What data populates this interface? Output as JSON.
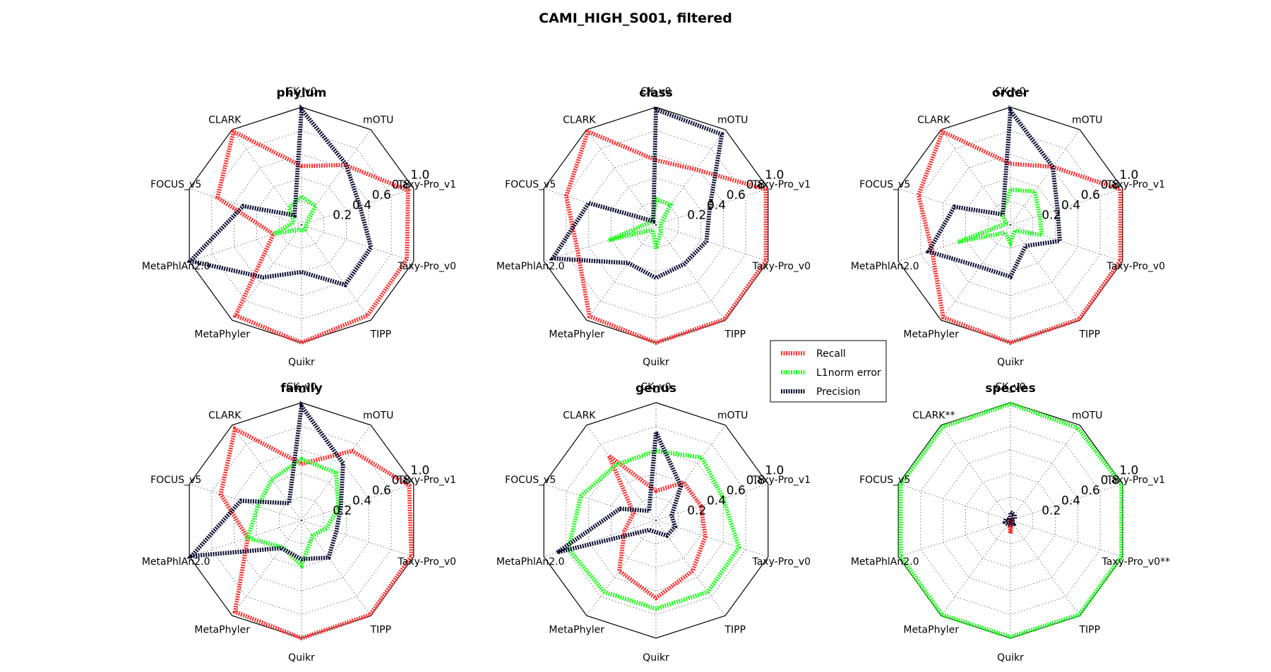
{
  "chart_data": {
    "title": "CAMI_HIGH_S001, filtered",
    "type": "radar",
    "categories": [
      "CK_v0",
      "mOTU",
      "Taxy-Pro_v1",
      "Taxy-Pro_v0",
      "TIPP",
      "Quikr",
      "MetaPhyler",
      "MetaPhlAn2.0",
      "FOCUS_v5",
      "CLARK"
    ],
    "radial_ticks": [
      "0.2",
      "0.4",
      "0.6",
      "0.8",
      "1.0"
    ],
    "rlim": [
      0,
      1
    ],
    "legend": {
      "position": "center-right",
      "entries": [
        {
          "name": "Recall",
          "color": "#ff3333"
        },
        {
          "name": "L1norm error",
          "color": "#22ff22"
        },
        {
          "name": "Precision",
          "color": "#0d0d33"
        }
      ]
    },
    "panels": [
      {
        "rank": "phylum",
        "series": [
          {
            "name": "Recall",
            "values": [
              0.5,
              0.63,
              0.95,
              0.94,
              0.95,
              1.0,
              0.95,
              0.25,
              0.75,
              0.98
            ]
          },
          {
            "name": "L1norm error",
            "values": [
              0.24,
              0.2,
              0.05,
              0.04,
              0.05,
              0.05,
              0.05,
              0.25,
              0.07,
              0.18
            ]
          },
          {
            "name": "Precision",
            "values": [
              0.98,
              0.64,
              0.52,
              0.62,
              0.63,
              0.4,
              0.55,
              0.99,
              0.52,
              0.1
            ]
          }
        ]
      },
      {
        "rank": "class",
        "series": [
          {
            "name": "Recall",
            "values": [
              0.55,
              0.58,
              0.98,
              0.98,
              0.99,
              1.0,
              0.96,
              0.7,
              0.8,
              0.98
            ]
          },
          {
            "name": "L1norm error",
            "values": [
              0.22,
              0.21,
              0.05,
              0.04,
              0.07,
              0.2,
              0.05,
              0.42,
              0.06,
              0.05
            ]
          },
          {
            "name": "Precision",
            "values": [
              0.98,
              0.95,
              0.48,
              0.45,
              0.41,
              0.45,
              0.4,
              0.92,
              0.6,
              0.04
            ]
          }
        ]
      },
      {
        "rank": "order",
        "series": [
          {
            "name": "Recall",
            "values": [
              0.52,
              0.61,
              0.98,
              0.98,
              0.99,
              1.0,
              0.97,
              0.7,
              0.82,
              0.98
            ]
          },
          {
            "name": "L1norm error",
            "values": [
              0.3,
              0.35,
              0.26,
              0.28,
              0.06,
              0.15,
              0.08,
              0.47,
              0.04,
              0.12
            ]
          },
          {
            "name": "Precision",
            "values": [
              0.97,
              0.61,
              0.42,
              0.44,
              0.22,
              0.44,
              0.44,
              0.73,
              0.5,
              0.11
            ]
          }
        ]
      },
      {
        "rank": "family",
        "series": [
          {
            "name": "Recall",
            "values": [
              0.48,
              0.73,
              0.96,
              0.98,
              0.99,
              1.0,
              0.96,
              0.48,
              0.72,
              0.96
            ]
          },
          {
            "name": "L1norm error",
            "values": [
              0.52,
              0.5,
              0.33,
              0.22,
              0.16,
              0.38,
              0.28,
              0.48,
              0.39,
              0.43
            ]
          },
          {
            "name": "Precision",
            "values": [
              0.97,
              0.6,
              0.35,
              0.31,
              0.39,
              0.33,
              0.29,
              0.98,
              0.54,
              0.18
            ]
          }
        ]
      },
      {
        "rank": "genus",
        "series": [
          {
            "name": "Recall",
            "values": [
              0.25,
              0.4,
              0.4,
              0.44,
              0.53,
              0.66,
              0.53,
              0.28,
              0.2,
              0.68
            ]
          },
          {
            "name": "L1norm error",
            "values": [
              0.59,
              0.66,
              0.6,
              0.74,
              0.75,
              0.75,
              0.75,
              0.78,
              0.67,
              0.58
            ]
          },
          {
            "name": "Precision",
            "values": [
              0.75,
              0.36,
              0.14,
              0.17,
              0.16,
              0.1,
              0.1,
              0.88,
              0.32,
              0.1
            ]
          }
        ]
      },
      {
        "rank": "species",
        "highlighted_categories": [
          "Taxy-Pro_v0",
          "CLARK"
        ],
        "highlight_suffix": "**",
        "highlight_color": "#ff0000",
        "series": [
          {
            "name": "Recall",
            "values": [
              0.01,
              0.01,
              0.01,
              0.0,
              0.02,
              0.11,
              0.02,
              0.01,
              0.01,
              0.0
            ]
          },
          {
            "name": "L1norm error",
            "values": [
              0.99,
              0.97,
              0.99,
              0.99,
              0.99,
              0.99,
              0.99,
              0.98,
              0.98,
              0.98
            ]
          },
          {
            "name": "Precision",
            "values": [
              0.07,
              0.06,
              0.04,
              0.0,
              0.04,
              0.04,
              0.04,
              0.05,
              0.04,
              0.0
            ]
          }
        ]
      }
    ]
  }
}
